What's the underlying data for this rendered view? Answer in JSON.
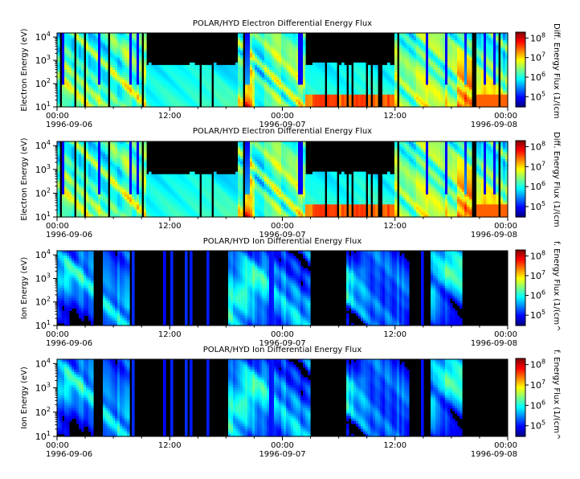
{
  "chart_data": [
    {
      "type": "heatmap",
      "title": "POLAR/HYD  Electron Differential Energy Flux",
      "ylabel": "Electron Energy (eV)",
      "colorbar_label": "Diff. Energy Flux (1/(cm",
      "y_scale": "log",
      "ylim": [
        10,
        15000
      ],
      "y_ticks": [
        {
          "base": "10",
          "exp": "1"
        },
        {
          "base": "10",
          "exp": "2"
        },
        {
          "base": "10",
          "exp": "3"
        },
        {
          "base": "10",
          "exp": "4"
        }
      ],
      "colorbar_scale": "log",
      "colorbar_range": [
        30000,
        200000000
      ],
      "colorbar_ticks": [
        {
          "base": "10",
          "exp": "5"
        },
        {
          "base": "10",
          "exp": "6"
        },
        {
          "base": "10",
          "exp": "7"
        },
        {
          "base": "10",
          "exp": "8"
        }
      ],
      "x_ticks": [
        {
          "time": "00:00",
          "date": "1996-09-06"
        },
        {
          "time": "12:00",
          "date": ""
        },
        {
          "time": "00:00",
          "date": "1996-09-07"
        },
        {
          "time": "12:00",
          "date": ""
        },
        {
          "time": "00:00",
          "date": "1996-09-08"
        }
      ],
      "background_color": "#000000",
      "species": "electron"
    },
    {
      "type": "heatmap",
      "title": "POLAR/HYD  Electron Differential Energy Flux",
      "ylabel": "Electron Energy (eV)",
      "colorbar_label": "Diff. Energy Flux (1/(cm",
      "y_scale": "log",
      "ylim": [
        10,
        15000
      ],
      "y_ticks": [
        {
          "base": "10",
          "exp": "1"
        },
        {
          "base": "10",
          "exp": "2"
        },
        {
          "base": "10",
          "exp": "3"
        },
        {
          "base": "10",
          "exp": "4"
        }
      ],
      "colorbar_scale": "log",
      "colorbar_range": [
        30000,
        200000000
      ],
      "colorbar_ticks": [
        {
          "base": "10",
          "exp": "5"
        },
        {
          "base": "10",
          "exp": "6"
        },
        {
          "base": "10",
          "exp": "7"
        },
        {
          "base": "10",
          "exp": "8"
        }
      ],
      "x_ticks": [
        {
          "time": "00:00",
          "date": "1996-09-06"
        },
        {
          "time": "12:00",
          "date": ""
        },
        {
          "time": "00:00",
          "date": "1996-09-07"
        },
        {
          "time": "12:00",
          "date": ""
        },
        {
          "time": "00:00",
          "date": "1996-09-08"
        }
      ],
      "background_color": "#000000",
      "species": "electron"
    },
    {
      "type": "heatmap",
      "title": "POLAR/HYD  Ion Differential Energy Flux",
      "ylabel": "Ion Energy (eV)",
      "colorbar_label": "f. Energy Flux (1/(cm^",
      "y_scale": "log",
      "ylim": [
        10,
        15000
      ],
      "y_ticks": [
        {
          "base": "10",
          "exp": "1"
        },
        {
          "base": "10",
          "exp": "2"
        },
        {
          "base": "10",
          "exp": "3"
        },
        {
          "base": "10",
          "exp": "4"
        }
      ],
      "colorbar_scale": "log",
      "colorbar_range": [
        30000,
        200000000
      ],
      "colorbar_ticks": [
        {
          "base": "10",
          "exp": "5"
        },
        {
          "base": "10",
          "exp": "6"
        },
        {
          "base": "10",
          "exp": "7"
        },
        {
          "base": "10",
          "exp": "8"
        }
      ],
      "x_ticks": [
        {
          "time": "00:00",
          "date": "1996-09-06"
        },
        {
          "time": "12:00",
          "date": ""
        },
        {
          "time": "00:00",
          "date": "1996-09-07"
        },
        {
          "time": "12:00",
          "date": ""
        },
        {
          "time": "00:00",
          "date": "1996-09-08"
        }
      ],
      "background_color": "#000000",
      "species": "ion"
    },
    {
      "type": "heatmap",
      "title": "POLAR/HYD  Ion Differential Energy Flux",
      "ylabel": "Ion Energy (eV)",
      "colorbar_label": "f. Energy Flux (1/(cm^",
      "y_scale": "log",
      "ylim": [
        10,
        15000
      ],
      "y_ticks": [
        {
          "base": "10",
          "exp": "1"
        },
        {
          "base": "10",
          "exp": "2"
        },
        {
          "base": "10",
          "exp": "3"
        },
        {
          "base": "10",
          "exp": "4"
        }
      ],
      "colorbar_scale": "log",
      "colorbar_range": [
        30000,
        200000000
      ],
      "colorbar_ticks": [
        {
          "base": "10",
          "exp": "5"
        },
        {
          "base": "10",
          "exp": "6"
        },
        {
          "base": "10",
          "exp": "7"
        },
        {
          "base": "10",
          "exp": "8"
        }
      ],
      "x_ticks": [
        {
          "time": "00:00",
          "date": "1996-09-06"
        },
        {
          "time": "12:00",
          "date": ""
        },
        {
          "time": "00:00",
          "date": "1996-09-07"
        },
        {
          "time": "12:00",
          "date": ""
        },
        {
          "time": "00:00",
          "date": "1996-09-08"
        }
      ],
      "background_color": "#000000",
      "species": "ion"
    }
  ]
}
